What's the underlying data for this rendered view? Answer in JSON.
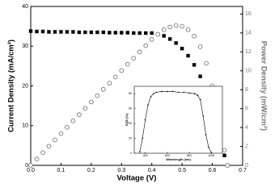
{
  "chart_data": [
    {
      "type": "line",
      "xlabel": "Voltage (V)",
      "ylabel": "Current Density (mA/cm²)",
      "y2label": "Power Density (mW/cm²)",
      "x": [
        0,
        0.02,
        0.04,
        0.06,
        0.08,
        0.1,
        0.12,
        0.14,
        0.16,
        0.18,
        0.2,
        0.22,
        0.24,
        0.26,
        0.28,
        0.3,
        0.32,
        0.34,
        0.36,
        0.38,
        0.4,
        0.42,
        0.44,
        0.46,
        0.48,
        0.5,
        0.52,
        0.54,
        0.56,
        0.58,
        0.6,
        0.62,
        0.64,
        0.65
      ],
      "series": [
        {
          "color": "#000000",
          "marker": "square",
          "values": [
            33.8,
            33.7,
            33.7,
            33.6,
            33.6,
            33.6,
            33.6,
            33.6,
            33.5,
            33.5,
            33.5,
            33.5,
            33.5,
            33.4,
            33.4,
            33.4,
            33.4,
            33.3,
            33.3,
            33.3,
            33.3,
            33.0,
            32.6,
            31.8,
            30.8,
            29.4,
            27.6,
            25.3,
            22.4,
            18.6,
            14.0,
            8.5,
            2.5,
            0
          ]
        },
        {
          "color": "#777777",
          "marker": "circle",
          "axis": "y2",
          "values": [
            0,
            0.67,
            1.35,
            2.02,
            2.69,
            3.36,
            4.03,
            4.7,
            5.36,
            6.03,
            6.7,
            7.37,
            8.04,
            8.68,
            9.35,
            10.02,
            10.69,
            11.32,
            11.99,
            12.65,
            13.32,
            13.86,
            14.34,
            14.63,
            14.78,
            14.7,
            14.35,
            13.66,
            12.54,
            10.79,
            8.4,
            5.27,
            1.6,
            0
          ]
        }
      ],
      "xlim": [
        0,
        0.7
      ],
      "xticks": [
        {
          "value": 0,
          "label": "0.0"
        },
        0.1,
        0.2,
        0.3,
        0.4,
        0.5,
        0.6,
        0.7
      ],
      "ylim": [
        0,
        40
      ],
      "yticks": [
        0,
        10,
        20,
        30,
        40
      ],
      "y2lim": [
        0,
        16.8
      ],
      "y2ticks": [
        0,
        2,
        4,
        6,
        8,
        10,
        12,
        14,
        16
      ]
    },
    {
      "type": "line",
      "xlabel": "Wavelength (nm)",
      "ylabel": "EQE (%)",
      "x": [
        350,
        375,
        400,
        425,
        450,
        475,
        500,
        550,
        600,
        650,
        700,
        750,
        800,
        850,
        875,
        900,
        925,
        950,
        975,
        1000
      ],
      "series": [
        {
          "color": "#000000",
          "marker": "dot",
          "values": [
            2,
            20,
            45,
            65,
            76,
            80,
            82,
            83,
            83,
            83,
            82,
            82,
            81,
            80,
            78,
            72,
            50,
            25,
            8,
            1
          ]
        }
      ],
      "xlim": [
        300,
        1100
      ],
      "xticks": [
        400,
        600,
        800,
        1000
      ],
      "ylim": [
        0,
        90
      ],
      "yticks": [
        0,
        20,
        40,
        60,
        80
      ]
    }
  ]
}
